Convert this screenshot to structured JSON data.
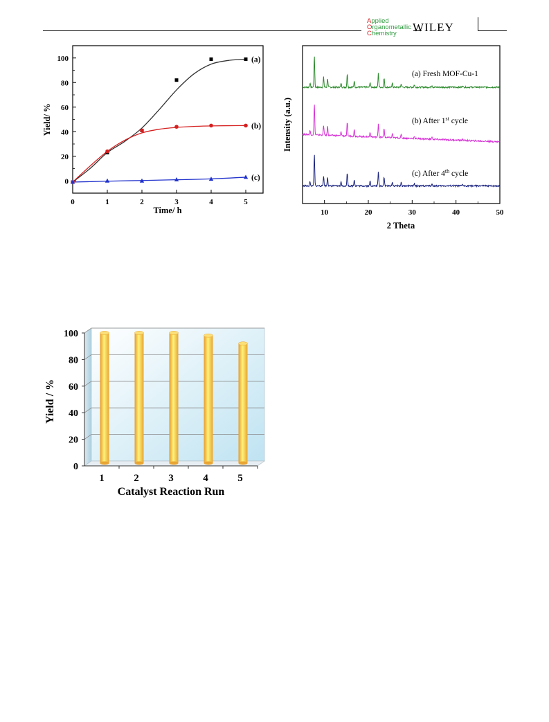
{
  "header": {
    "journal_lines": [
      {
        "first": "A",
        "rest": "pplied"
      },
      {
        "first": "O",
        "rest": "rganometallic"
      },
      {
        "first": "C",
        "rest": "hemistry"
      }
    ],
    "publisher": "WILEY",
    "colors": {
      "journal_green": "#2e9b3e",
      "journal_red": "#d2232a"
    }
  },
  "chart_data": [
    {
      "type": "scatter",
      "xlabel": "Time/ h",
      "ylabel": "Yield/ %",
      "xlim": [
        0,
        5.5
      ],
      "ylim": [
        -10,
        110
      ],
      "xticks": [
        0,
        1,
        2,
        3,
        4,
        5
      ],
      "yticks": [
        0,
        20,
        40,
        60,
        80,
        100
      ],
      "grid": false,
      "series": [
        {
          "name": "(a)",
          "color": "#000000",
          "marker": "square",
          "curve_color": "#333333",
          "x": [
            0,
            1,
            2,
            3,
            4,
            5
          ],
          "y": [
            -1,
            23,
            41,
            82,
            99,
            99
          ],
          "fit": [
            [
              0,
              -1
            ],
            [
              0.5,
              10
            ],
            [
              1,
              23
            ],
            [
              1.5,
              32
            ],
            [
              2,
              43
            ],
            [
              2.5,
              58
            ],
            [
              3,
              74
            ],
            [
              3.5,
              87
            ],
            [
              4,
              95
            ],
            [
              4.5,
              98
            ],
            [
              5,
              99
            ]
          ]
        },
        {
          "name": "(b)",
          "color": "#d62020",
          "marker": "circle",
          "curve_color": "#d62020",
          "x": [
            0,
            1,
            2,
            3,
            4,
            5
          ],
          "y": [
            -1,
            24,
            41,
            44,
            45,
            45
          ],
          "fit": [
            [
              0,
              -1
            ],
            [
              0.5,
              12
            ],
            [
              1,
              24
            ],
            [
              1.5,
              33
            ],
            [
              2,
              39
            ],
            [
              2.5,
              42
            ],
            [
              3,
              43.5
            ],
            [
              3.5,
              44.3
            ],
            [
              4,
              44.7
            ],
            [
              4.5,
              44.9
            ],
            [
              5,
              45
            ]
          ]
        },
        {
          "name": "(c)",
          "color": "#2233cc",
          "marker": "triangle",
          "curve_color": "#2233cc",
          "x": [
            0,
            1,
            2,
            3,
            4,
            5
          ],
          "y": [
            -1,
            0,
            0,
            1,
            1.5,
            3
          ],
          "fit": [
            [
              0,
              -1
            ],
            [
              1,
              -0.3
            ],
            [
              2,
              0.3
            ],
            [
              3,
              0.9
            ],
            [
              4,
              1.6
            ],
            [
              5,
              3
            ]
          ]
        }
      ]
    },
    {
      "type": "line",
      "xlabel": "2 Theta",
      "ylabel": "Intensity (a.u.)",
      "xlim": [
        5,
        50
      ],
      "xticks": [
        10,
        20,
        30,
        40,
        50
      ],
      "grid": false,
      "peaks": [
        {
          "x": 6.7,
          "h": 0.5
        },
        {
          "x": 7.7,
          "h": 3.8
        },
        {
          "x": 9.8,
          "h": 1.2
        },
        {
          "x": 10.7,
          "h": 1.1
        },
        {
          "x": 13.8,
          "h": 0.5
        },
        {
          "x": 15.2,
          "h": 1.6
        },
        {
          "x": 16.8,
          "h": 0.8
        },
        {
          "x": 20.4,
          "h": 0.6
        },
        {
          "x": 22.3,
          "h": 1.7
        },
        {
          "x": 23.6,
          "h": 1.1
        },
        {
          "x": 25.5,
          "h": 0.5
        },
        {
          "x": 27.5,
          "h": 0.4
        },
        {
          "x": 30.5,
          "h": 0.3
        },
        {
          "x": 34.5,
          "h": 0.25
        },
        {
          "x": 41.5,
          "h": 0.2
        }
      ],
      "series": [
        {
          "name_main": "(a) Fresh MOF-Cu-1",
          "name_sup": "",
          "name_tail": "",
          "color": "#2e8b2e",
          "scale": 1.0,
          "baseline_offset": 0
        },
        {
          "name_main": "(b) After 1",
          "name_sup": "st",
          "name_tail": " cycle",
          "color": "#d633d6",
          "scale": 1.0,
          "baseline_offset": 1
        },
        {
          "name_main": "(c) After 4",
          "name_sup": "th",
          "name_tail": " cycle",
          "color": "#1a237e",
          "scale": 1.0,
          "baseline_offset": 2
        }
      ]
    },
    {
      "type": "bar",
      "xlabel": "Catalyst Reaction Run",
      "ylabel": "Yield / %",
      "categories": [
        "1",
        "2",
        "3",
        "4",
        "5"
      ],
      "values": [
        98,
        98,
        98,
        96,
        90
      ],
      "ylim": [
        0,
        100
      ],
      "yticks": [
        0,
        20,
        40,
        60,
        80,
        100
      ],
      "grid": true,
      "bar_color": "#f6c24a"
    }
  ]
}
